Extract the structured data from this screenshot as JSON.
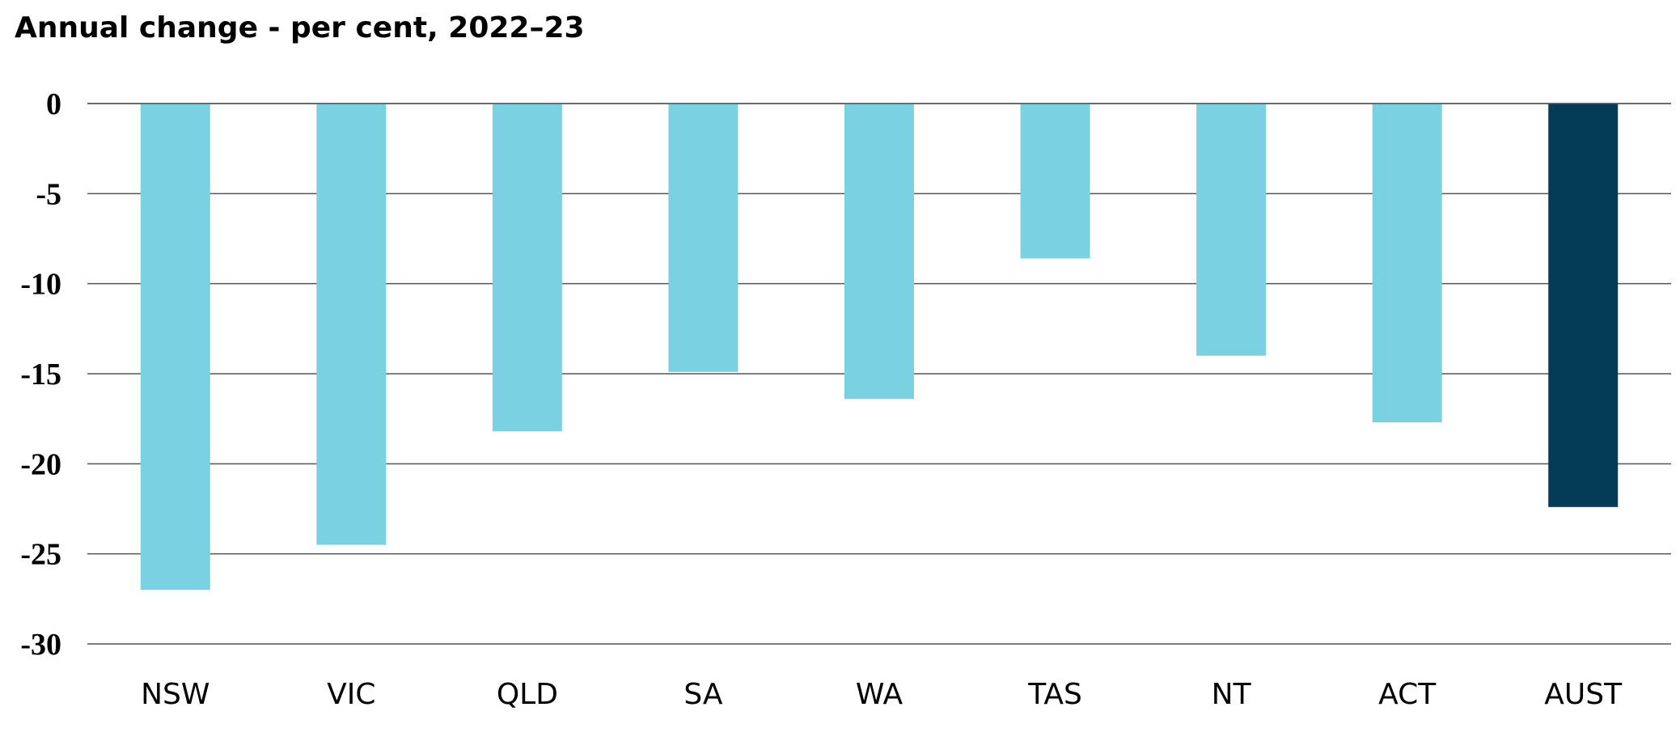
{
  "chart_data": {
    "type": "bar",
    "title": "Annual change - per cent, 2022–23",
    "xlabel": "",
    "ylabel": "",
    "categories": [
      "NSW",
      "VIC",
      "QLD",
      "SA",
      "WA",
      "TAS",
      "NT",
      "ACT",
      "AUST"
    ],
    "values": [
      -27.0,
      -24.5,
      -18.2,
      -14.9,
      -16.4,
      -8.6,
      -14.0,
      -17.7,
      -22.4
    ],
    "ylim": [
      -30,
      0
    ],
    "yticks": [
      "0",
      "-5",
      "-10",
      "-15",
      "-20",
      "-25",
      "-30"
    ],
    "grid": true,
    "legend": "none",
    "colors": {
      "default_bar": "#7ad1e2",
      "highlight_bar": "#043b57",
      "gridline": "#555555"
    },
    "highlight_category": "AUST"
  }
}
